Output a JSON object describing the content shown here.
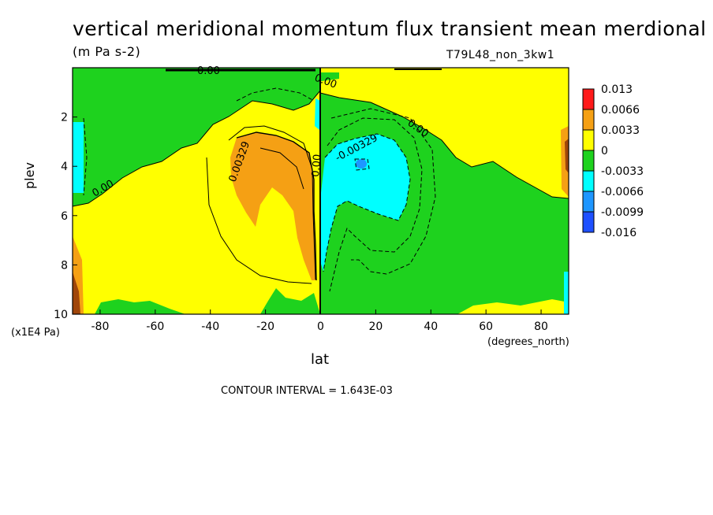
{
  "chart_data": {
    "type": "heatmap",
    "title": "vertical meridional momentum flux transient mean merdional",
    "units": "(m Pa s-2)",
    "dataset": "T79L48_non_3kw1",
    "xlabel": "lat",
    "x_units": "(degrees_north)",
    "ylabel": "plev",
    "y_units": "(x1E4 Pa)",
    "xlim": [
      -90,
      90
    ],
    "ylim": [
      10,
      0
    ],
    "x_ticks": [
      "-80",
      "-60",
      "-40",
      "-20",
      "0",
      "20",
      "40",
      "60",
      "80"
    ],
    "x_tick_values": [
      -80,
      -60,
      -40,
      -20,
      0,
      20,
      40,
      60,
      80
    ],
    "y_ticks": [
      "2",
      "4",
      "6",
      "8",
      "10"
    ],
    "y_tick_values": [
      2,
      4,
      6,
      8,
      10
    ],
    "contour_interval_label": "CONTOUR INTERVAL = 1.643E-03",
    "contour_labels": [
      "0.00",
      "0.00",
      "0.00",
      "0.00",
      "0.00329",
      "0.00",
      "-0.00329"
    ],
    "legend": {
      "labels": [
        "0.013",
        "0.0066",
        "0.0033",
        "0",
        "-0.0033",
        "-0.0066",
        "-0.0099",
        "-0.016"
      ],
      "colors": [
        "#ff1a1a",
        "#f5a014",
        "#ffff00",
        "#1ed21e",
        "#00ffff",
        "#1e96ff",
        "#1e50ff"
      ]
    },
    "colors": {
      "positive_low": "#ffff00",
      "positive_mid": "#f5a014",
      "positive_high": "#a0460a",
      "negative_low": "#1ed21e",
      "negative_mid": "#00ffff",
      "negative_high": "#1e96ff"
    }
  }
}
